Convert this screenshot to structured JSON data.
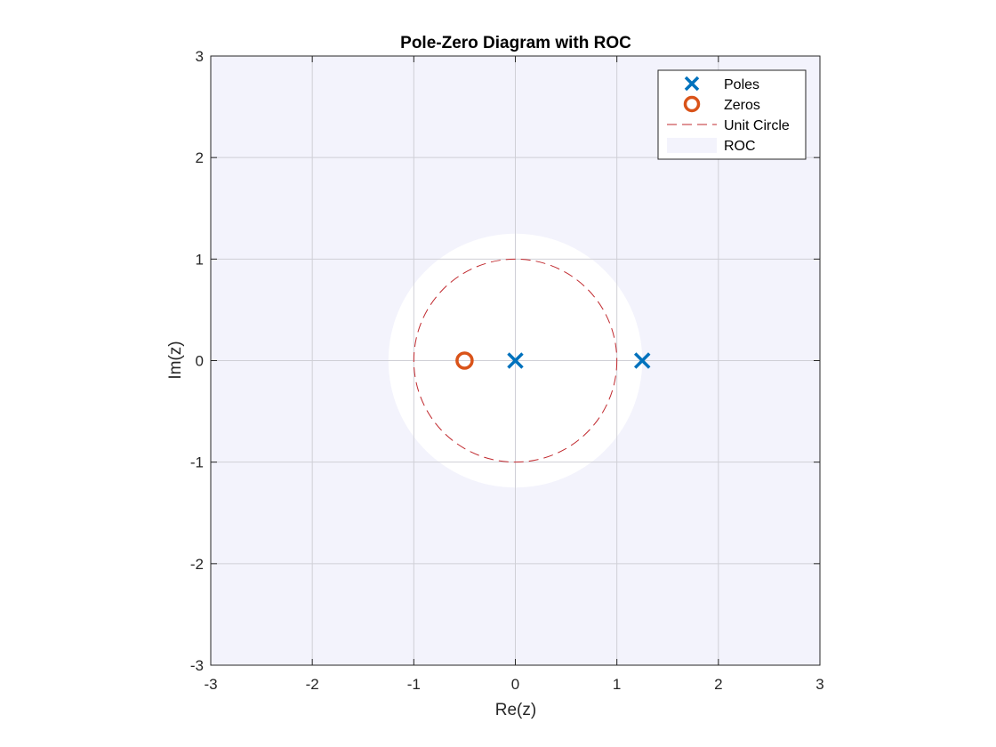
{
  "chart_data": {
    "type": "scatter",
    "title": "Pole-Zero Diagram with ROC",
    "xlabel": "Re(z)",
    "ylabel": "Im(z)",
    "xlim": [
      -3,
      3
    ],
    "ylim": [
      -3,
      3
    ],
    "xticks": [
      -3,
      -2,
      -1,
      0,
      1,
      2,
      3
    ],
    "yticks": [
      -3,
      -2,
      -1,
      0,
      1,
      2,
      3
    ],
    "grid": true,
    "aspect": "equal",
    "legend_position": "top-right",
    "series": [
      {
        "name": "Poles",
        "marker": "x",
        "color": "#0072BD",
        "points": [
          [
            0,
            0
          ],
          [
            1.25,
            0
          ]
        ]
      },
      {
        "name": "Zeros",
        "marker": "o",
        "color": "#D95319",
        "points": [
          [
            -0.5,
            0
          ]
        ]
      },
      {
        "name": "Unit Circle",
        "style": "dashed-line",
        "color": "#C0282D",
        "center": [
          0,
          0
        ],
        "radius": 1
      },
      {
        "name": "ROC",
        "style": "filled-region",
        "color": "#F3F3FC",
        "region": "|z| > 1.25",
        "inner_radius": 1.25
      }
    ]
  }
}
